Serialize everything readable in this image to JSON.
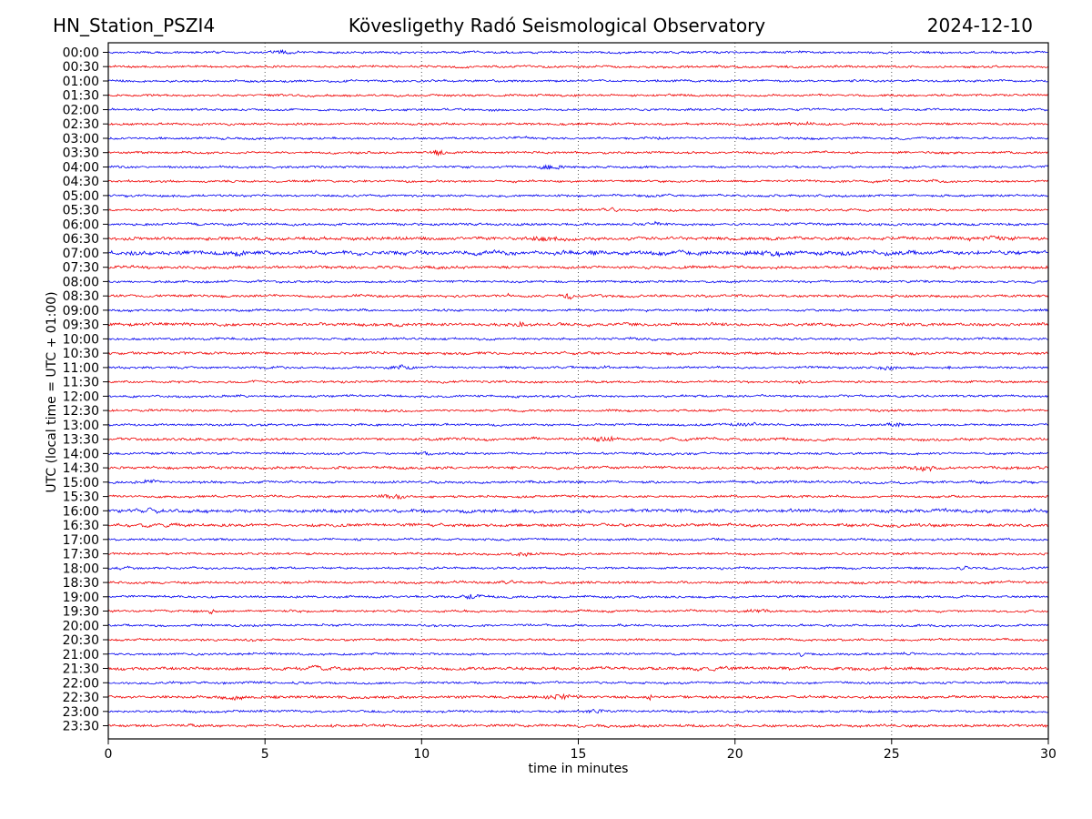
{
  "header": {
    "station": "HN_Station_PSZI4",
    "observatory": "Kövesligethy Radó Seismological Observatory",
    "date": "2024-12-10"
  },
  "chart_data": {
    "type": "line",
    "subtype": "helicorder-dayplot",
    "title": "HN_Station_PSZI4 — Kövesligethy Radó Seismological Observatory — 2024-12-10",
    "xlabel": "time in minutes",
    "ylabel": "UTC (local time = UTC + 01:00)",
    "xlim": [
      0,
      30
    ],
    "xticks": [
      0,
      5,
      10,
      15,
      20,
      25,
      30
    ],
    "grid_minutes": [
      5,
      10,
      15,
      20,
      25
    ],
    "grid_style": "dotted",
    "row_interval_minutes": 30,
    "n_rows": 48,
    "trace_colors": {
      "blue": "#0000f0",
      "red": "#f00000"
    },
    "rows": [
      {
        "label": "00:00",
        "color": "blue"
      },
      {
        "label": "00:30",
        "color": "red"
      },
      {
        "label": "01:00",
        "color": "blue"
      },
      {
        "label": "01:30",
        "color": "red"
      },
      {
        "label": "02:00",
        "color": "blue"
      },
      {
        "label": "02:30",
        "color": "red"
      },
      {
        "label": "03:00",
        "color": "blue"
      },
      {
        "label": "03:30",
        "color": "red"
      },
      {
        "label": "04:00",
        "color": "blue"
      },
      {
        "label": "04:30",
        "color": "red"
      },
      {
        "label": "05:00",
        "color": "blue"
      },
      {
        "label": "05:30",
        "color": "red"
      },
      {
        "label": "06:00",
        "color": "blue"
      },
      {
        "label": "06:30",
        "color": "red"
      },
      {
        "label": "07:00",
        "color": "blue"
      },
      {
        "label": "07:30",
        "color": "red"
      },
      {
        "label": "08:00",
        "color": "blue"
      },
      {
        "label": "08:30",
        "color": "red"
      },
      {
        "label": "09:00",
        "color": "blue"
      },
      {
        "label": "09:30",
        "color": "red"
      },
      {
        "label": "10:00",
        "color": "blue"
      },
      {
        "label": "10:30",
        "color": "red"
      },
      {
        "label": "11:00",
        "color": "blue"
      },
      {
        "label": "11:30",
        "color": "red"
      },
      {
        "label": "12:00",
        "color": "blue"
      },
      {
        "label": "12:30",
        "color": "red"
      },
      {
        "label": "13:00",
        "color": "blue"
      },
      {
        "label": "13:30",
        "color": "red"
      },
      {
        "label": "14:00",
        "color": "blue"
      },
      {
        "label": "14:30",
        "color": "red"
      },
      {
        "label": "15:00",
        "color": "blue"
      },
      {
        "label": "15:30",
        "color": "red"
      },
      {
        "label": "16:00",
        "color": "blue"
      },
      {
        "label": "16:30",
        "color": "red"
      },
      {
        "label": "17:00",
        "color": "blue"
      },
      {
        "label": "17:30",
        "color": "red"
      },
      {
        "label": "18:00",
        "color": "blue"
      },
      {
        "label": "18:30",
        "color": "red"
      },
      {
        "label": "19:00",
        "color": "blue"
      },
      {
        "label": "19:30",
        "color": "red"
      },
      {
        "label": "20:00",
        "color": "blue"
      },
      {
        "label": "20:30",
        "color": "red"
      },
      {
        "label": "21:00",
        "color": "blue"
      },
      {
        "label": "21:30",
        "color": "red"
      },
      {
        "label": "22:00",
        "color": "blue"
      },
      {
        "label": "22:30",
        "color": "red"
      },
      {
        "label": "23:00",
        "color": "blue"
      },
      {
        "label": "23:30",
        "color": "red"
      }
    ],
    "row_amplitude_overrides": {
      "06:00": 1.1,
      "06:30": 1.4,
      "07:00": 1.75,
      "07:30": 1.25,
      "08:30": 1.1,
      "09:30": 1.3,
      "10:30": 1.15,
      "13:30": 1.2,
      "14:30": 1.2,
      "15:00": 1.1,
      "16:00": 1.5,
      "16:30": 1.3,
      "18:30": 1.1,
      "21:30": 1.35,
      "22:30": 1.2,
      "23:30": 1.2
    },
    "events": [
      {
        "row": "00:00",
        "type": "burst",
        "start": 5.2,
        "end": 6.1,
        "amp": 2.2
      },
      {
        "row": "00:30",
        "type": "burst",
        "start": 21.5,
        "end": 23.5,
        "amp": 1.25
      },
      {
        "row": "02:30",
        "type": "burst",
        "start": 21.2,
        "end": 22.9,
        "amp": 1.5
      },
      {
        "row": "03:00",
        "type": "burst",
        "start": 17.2,
        "end": 17.9,
        "amp": 1.6
      },
      {
        "row": "03:30",
        "type": "burst",
        "start": 10.2,
        "end": 10.9,
        "amp": 2.8
      },
      {
        "row": "04:00",
        "type": "burst",
        "start": 13.4,
        "end": 14.7,
        "amp": 2.6
      },
      {
        "row": "04:00",
        "type": "burst",
        "start": 25.4,
        "end": 26.0,
        "amp": 1.4
      },
      {
        "row": "04:30",
        "type": "burst",
        "start": 25.7,
        "end": 26.8,
        "amp": 1.4
      },
      {
        "row": "05:30",
        "type": "lf",
        "start": 15.7,
        "end": 16.4,
        "amp": 1.5,
        "period": 0.3
      },
      {
        "row": "06:00",
        "type": "spike",
        "t": 17.5,
        "amp": 2.0
      },
      {
        "row": "06:00",
        "type": "spike",
        "t": 24.6,
        "amp": 1.6
      },
      {
        "row": "06:30",
        "type": "burst",
        "start": 13.2,
        "end": 14.8,
        "amp": 1.7
      },
      {
        "row": "06:30",
        "type": "burst",
        "start": 27.5,
        "end": 29.5,
        "amp": 1.4
      },
      {
        "row": "07:00",
        "type": "lf",
        "start": 0.0,
        "end": 30.0,
        "amp": 0.9,
        "period": 1.2
      },
      {
        "row": "07:00",
        "type": "burst",
        "start": 3.8,
        "end": 4.4,
        "amp": 1.8
      },
      {
        "row": "07:00",
        "type": "burst",
        "start": 15.2,
        "end": 15.7,
        "amp": 1.6
      },
      {
        "row": "07:00",
        "type": "burst",
        "start": 20.3,
        "end": 22.3,
        "amp": 1.6
      },
      {
        "row": "07:30",
        "type": "burst",
        "start": 24.3,
        "end": 24.8,
        "amp": 1.5
      },
      {
        "row": "08:30",
        "type": "spike",
        "t": 12.8,
        "amp": 2.2
      },
      {
        "row": "08:30",
        "type": "burst",
        "start": 14.5,
        "end": 14.9,
        "amp": 2.8
      },
      {
        "row": "09:00",
        "type": "spike",
        "t": 19.1,
        "amp": 2.4
      },
      {
        "row": "09:30",
        "type": "burst",
        "start": 13.0,
        "end": 13.4,
        "amp": 2.4
      },
      {
        "row": "10:00",
        "type": "burst",
        "start": 16.6,
        "end": 17.0,
        "amp": 1.5
      },
      {
        "row": "11:00",
        "type": "burst",
        "start": 9.0,
        "end": 9.8,
        "amp": 2.6
      },
      {
        "row": "11:00",
        "type": "spike",
        "t": 15.9,
        "amp": 1.8
      },
      {
        "row": "11:00",
        "type": "burst",
        "start": 24.6,
        "end": 25.2,
        "amp": 2.4
      },
      {
        "row": "11:00",
        "type": "burst",
        "start": 26.7,
        "end": 27.0,
        "amp": 1.5
      },
      {
        "row": "11:30",
        "type": "spike",
        "t": 22.1,
        "amp": 3.2
      },
      {
        "row": "11:30",
        "type": "spike",
        "t": 28.4,
        "amp": 1.8
      },
      {
        "row": "13:00",
        "type": "burst",
        "start": 19.7,
        "end": 20.9,
        "amp": 2.0
      },
      {
        "row": "13:00",
        "type": "burst",
        "start": 24.8,
        "end": 25.4,
        "amp": 2.6
      },
      {
        "row": "13:30",
        "type": "burst",
        "start": 15.1,
        "end": 16.4,
        "amp": 2.5
      },
      {
        "row": "13:30",
        "type": "lf",
        "start": 17.0,
        "end": 19.0,
        "amp": 1.1,
        "period": 0.8
      },
      {
        "row": "14:00",
        "type": "burst",
        "start": 9.8,
        "end": 10.4,
        "amp": 1.5
      },
      {
        "row": "14:30",
        "type": "burst",
        "start": 25.4,
        "end": 26.5,
        "amp": 2.4
      },
      {
        "row": "15:00",
        "type": "burst",
        "start": 0.9,
        "end": 1.7,
        "amp": 1.7
      },
      {
        "row": "15:30",
        "type": "burst",
        "start": 8.6,
        "end": 9.7,
        "amp": 2.6
      },
      {
        "row": "16:00",
        "type": "lf",
        "start": 0.7,
        "end": 1.8,
        "amp": 2.2,
        "period": 0.5
      },
      {
        "row": "16:00",
        "type": "lf",
        "start": 2.0,
        "end": 4.0,
        "amp": 1.2,
        "period": 0.7
      },
      {
        "row": "16:30",
        "type": "lf",
        "start": 0.8,
        "end": 2.5,
        "amp": 1.6,
        "period": 0.6
      },
      {
        "row": "16:30",
        "type": "lf",
        "start": 10.0,
        "end": 11.0,
        "amp": 1.2,
        "period": 0.5
      },
      {
        "row": "17:30",
        "type": "burst",
        "start": 12.8,
        "end": 13.7,
        "amp": 2.6
      },
      {
        "row": "18:00",
        "type": "lf",
        "start": 0.1,
        "end": 0.9,
        "amp": 1.5,
        "period": 0.4
      },
      {
        "row": "18:00",
        "type": "lf",
        "start": 27.0,
        "end": 27.6,
        "amp": 1.4,
        "period": 0.3
      },
      {
        "row": "18:30",
        "type": "lf",
        "start": 12.5,
        "end": 13.1,
        "amp": 1.4,
        "period": 0.3
      },
      {
        "row": "19:00",
        "type": "burst",
        "start": 11.2,
        "end": 11.9,
        "amp": 3.0
      },
      {
        "row": "19:30",
        "type": "spike",
        "t": 3.3,
        "amp": 4.0
      },
      {
        "row": "19:30",
        "type": "burst",
        "start": 20.2,
        "end": 21.3,
        "amp": 2.2
      },
      {
        "row": "21:00",
        "type": "lf",
        "start": 21.9,
        "end": 22.3,
        "amp": 2.8,
        "period": 0.35
      },
      {
        "row": "21:00",
        "type": "lf",
        "start": 25.3,
        "end": 25.8,
        "amp": 1.3,
        "period": 0.3
      },
      {
        "row": "21:30",
        "type": "lf",
        "start": 5.0,
        "end": 8.8,
        "amp": 1.4,
        "period": 0.7
      },
      {
        "row": "21:30",
        "type": "lf",
        "start": 18.3,
        "end": 20.2,
        "amp": 1.4,
        "period": 0.6
      },
      {
        "row": "22:00",
        "type": "lf",
        "start": 5.8,
        "end": 6.3,
        "amp": 1.8,
        "period": 0.3
      },
      {
        "row": "22:30",
        "type": "burst",
        "start": 3.4,
        "end": 4.6,
        "amp": 1.9
      },
      {
        "row": "22:30",
        "type": "burst",
        "start": 13.9,
        "end": 14.9,
        "amp": 2.4
      },
      {
        "row": "22:30",
        "type": "spike",
        "t": 17.3,
        "amp": 2.2
      },
      {
        "row": "23:00",
        "type": "burst",
        "start": 15.2,
        "end": 15.9,
        "amp": 2.4
      }
    ],
    "legend": null,
    "grid_on": true
  }
}
